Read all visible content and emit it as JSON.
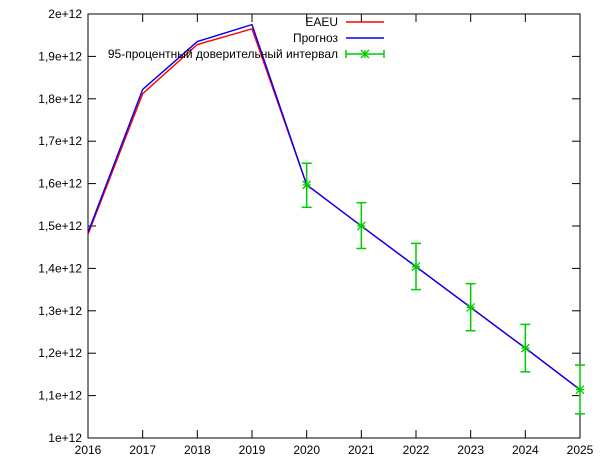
{
  "chart_data": {
    "type": "line",
    "title": "",
    "xlabel": "",
    "ylabel": "",
    "categories": [
      "2016",
      "2017",
      "2018",
      "2019",
      "2020",
      "2021",
      "2022",
      "2023",
      "2024",
      "2025"
    ],
    "x_ticks": [
      "2016",
      "2017",
      "2018",
      "2019",
      "2020",
      "2021",
      "2022",
      "2023",
      "2024",
      "2025"
    ],
    "y_ticks": [
      "1e+12",
      "1,1e+12",
      "1,2e+12",
      "1,3e+12",
      "1,4e+12",
      "1,5e+12",
      "1,6e+12",
      "1,7e+12",
      "1,8e+12",
      "1,9e+12",
      "2e+12"
    ],
    "xlim": [
      2016,
      2025
    ],
    "ylim": [
      1000000000000,
      2000000000000
    ],
    "grid": false,
    "legend_position": "top-right",
    "series": [
      {
        "name": "EAEU",
        "color": "#ff0000",
        "x": [
          2016,
          2017,
          2018,
          2019,
          2020,
          2021,
          2022,
          2023,
          2024,
          2025
        ],
        "values": [
          1480000000000,
          1812000000000,
          1928000000000,
          1965000000000,
          1597000000000,
          1500000000000,
          1404000000000,
          1308000000000,
          1212000000000,
          1114000000000
        ]
      },
      {
        "name": "Прогноз",
        "color": "#0000ff",
        "x": [
          2016,
          2017,
          2018,
          2019,
          2020,
          2021,
          2022,
          2023,
          2024,
          2025
        ],
        "values": [
          1485000000000,
          1822000000000,
          1935000000000,
          1975000000000,
          1597000000000,
          1500000000000,
          1404000000000,
          1308000000000,
          1212000000000,
          1114000000000
        ]
      },
      {
        "name": "95-процентный доверительный интервал",
        "color": "#00cc00",
        "type": "errorbar",
        "x": [
          2020,
          2021,
          2022,
          2023,
          2024,
          2025
        ],
        "values": [
          1597000000000,
          1500000000000,
          1404000000000,
          1308000000000,
          1212000000000,
          1114000000000
        ],
        "lower": [
          1544000000000,
          1447000000000,
          1350000000000,
          1253000000000,
          1156000000000,
          1057000000000
        ],
        "upper": [
          1648000000000,
          1555000000000,
          1459000000000,
          1364000000000,
          1268000000000,
          1172000000000
        ]
      }
    ]
  }
}
